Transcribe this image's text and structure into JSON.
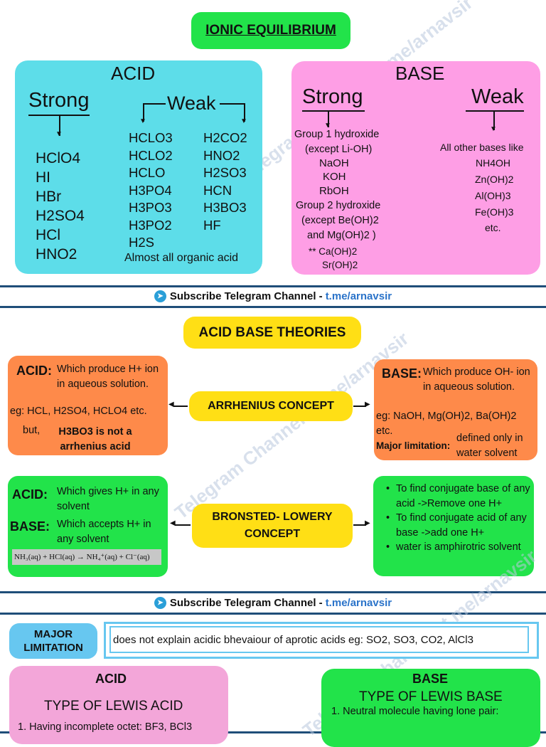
{
  "title": "IONIC EQUILIBRIUM",
  "acid": {
    "heading": "ACID",
    "strong": "Strong",
    "weak": "Weak",
    "strong_list": [
      "HClO4",
      "HI",
      "HBr",
      "H2SO4",
      "HCl",
      "HNO2"
    ],
    "weak_col1": [
      "HCLO3",
      "HCLO2",
      "HCLO",
      "H3PO4",
      "H3PO3",
      "H3PO2",
      "H2S"
    ],
    "weak_col2": [
      "H2CO2",
      "HNO2",
      "H2SO3",
      "HCN",
      "H3BO3",
      "HF"
    ],
    "organic": "Almost all organic acid"
  },
  "base": {
    "heading": "BASE",
    "strong": "Strong",
    "weak": "Weak",
    "strong_list": [
      "Group 1 hydroxide",
      "(except Li-OH)",
      "NaOH",
      "KOH",
      "RbOH",
      "Group 2 hydroxide",
      "(except Be(OH)2",
      "and Mg(OH)2 )",
      "** Ca(OH)2",
      "Sr(OH)2"
    ],
    "weak_list": [
      "All other bases like",
      "NH4OH",
      "Zn(OH)2",
      "Al(OH)3",
      "Fe(OH)3",
      "etc."
    ]
  },
  "subscribe": {
    "text": "Subscribe Telegram Channel -",
    "link": "t.me/arnavsir"
  },
  "watermark": "Telegram Channel - t.me/arnavsir",
  "theories": {
    "title": "ACID BASE THEORIES",
    "arrhenius": {
      "concept": "ARRHENIUS CONCEPT",
      "acid_label": "ACID:",
      "acid_text": "Which produce H+ ion in aqueous solution.",
      "acid_eg": "eg: HCL, H2SO4, HCLO4 etc.",
      "acid_but": "but,",
      "acid_note": "H3BO3 is not a arrhenius acid",
      "base_label": "BASE:",
      "base_text": "Which produce OH- ion in aqueous solution.",
      "base_eg": "eg: NaOH, Mg(OH)2, Ba(OH)2 etc.",
      "limit_label": "Major limitation:",
      "limit_text": "defined only in water solvent"
    },
    "bronsted": {
      "concept": "BRONSTED- LOWERY CONCEPT",
      "acid_label": "ACID:",
      "acid_text": "Which gives H+ in any solvent",
      "base_label": "BASE:",
      "base_text": "Which accepts H+ in any solvent",
      "equation": "NH₃(aq) + HCl(aq)  →  NH₄⁺(aq) + Cl⁻(aq)",
      "points": [
        "To find conjugate base of any acid ->Remove one H+",
        "To find conjugate acid of any base ->add one H+",
        "water is amphirotric solvent"
      ]
    }
  },
  "lewis": {
    "major_limitation": "MAJOR LIMITATION",
    "limitation_text": "does not explain acidic bhevaiour of aprotic acids eg: SO2, SO3, CO2, AlCl3",
    "acid_heading": "ACID",
    "acid_type": "TYPE OF LEWIS ACID",
    "acid_item1": "1. Having incomplete octet: BF3, BCl3",
    "base_heading": "BASE",
    "base_type": "TYPE OF LEWIS BASE",
    "base_item1": "1.  Neutral molecule having lone pair:"
  },
  "colors": {
    "green": "#22e34a",
    "cyan": "#5ddde9",
    "pink": "#fe9ee5",
    "orange": "#fe8a4a",
    "yellow": "#ffdf15",
    "lightpink": "#f3a6d9",
    "lightblue": "#67c7f0",
    "frame": "#1f4e79"
  }
}
